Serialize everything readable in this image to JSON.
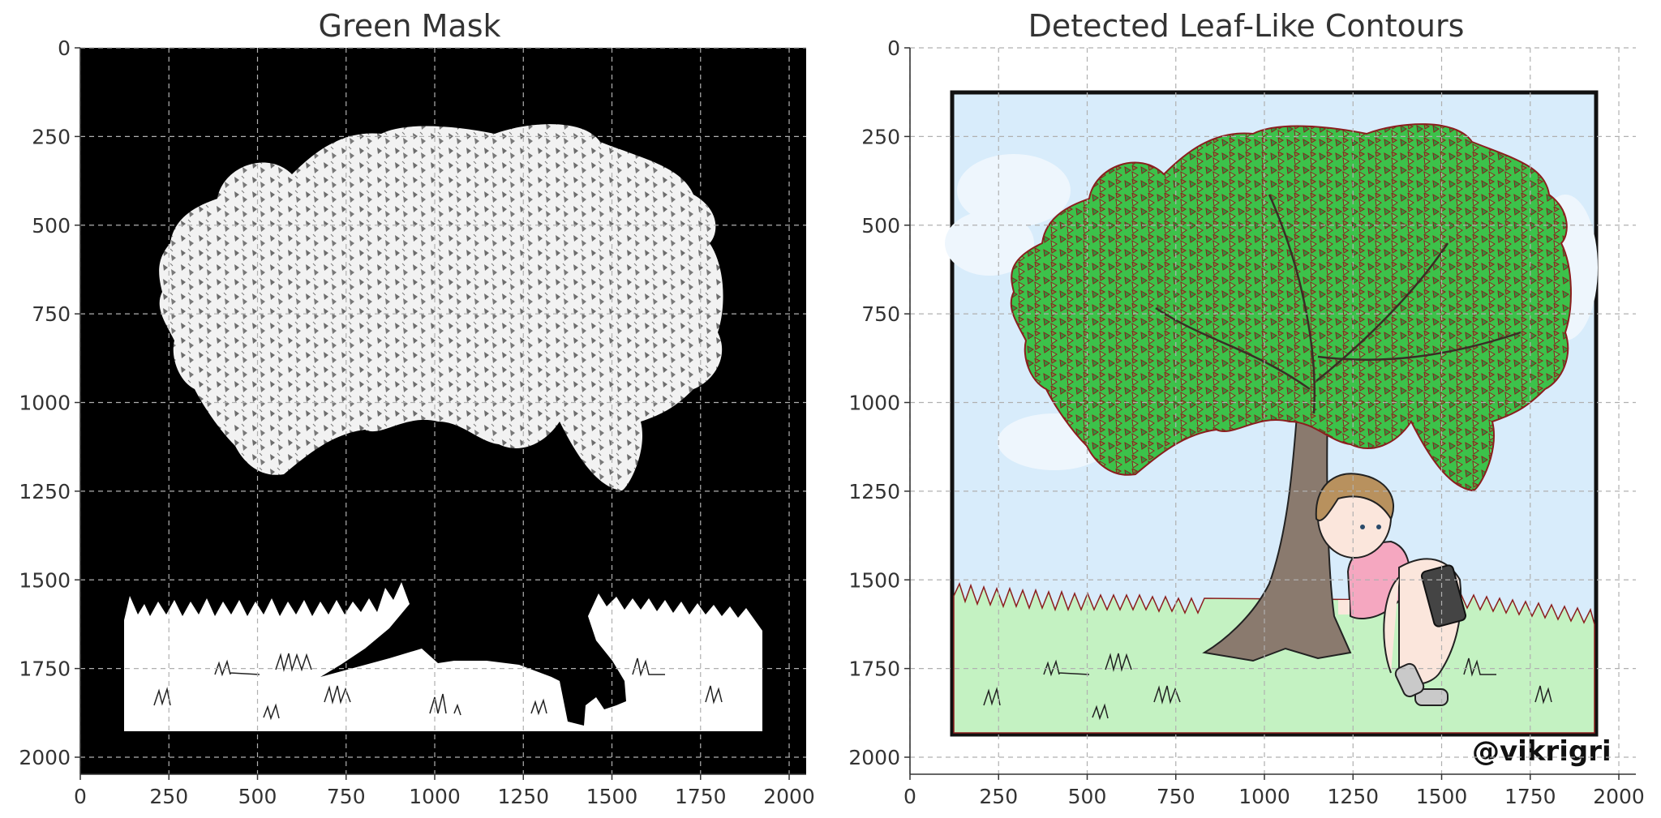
{
  "panels": [
    {
      "title": "Green Mask",
      "image_description_key": "binary-mask",
      "mask_foreground_color": "#ffffff",
      "mask_background_color": "#000000"
    },
    {
      "title": "Detected Leaf-Like Contours",
      "image_description_key": "contour-overlay",
      "contour_color": "#8b1e1e",
      "leaf_fill_color": "#3cc24a",
      "sky_color": "#d8ecfb",
      "grass_color": "#c4f2c2",
      "watermark": "@vikrigri"
    }
  ],
  "axes": {
    "x_ticks": [
      "0",
      "250",
      "500",
      "750",
      "1000",
      "1250",
      "1500",
      "1750",
      "2000"
    ],
    "y_ticks": [
      "0",
      "250",
      "500",
      "750",
      "1000",
      "1250",
      "1500",
      "1750",
      "2000"
    ],
    "xlim": [
      0,
      2048
    ],
    "ylim": [
      2048,
      0
    ],
    "grid": true,
    "grid_style": "dashed"
  }
}
